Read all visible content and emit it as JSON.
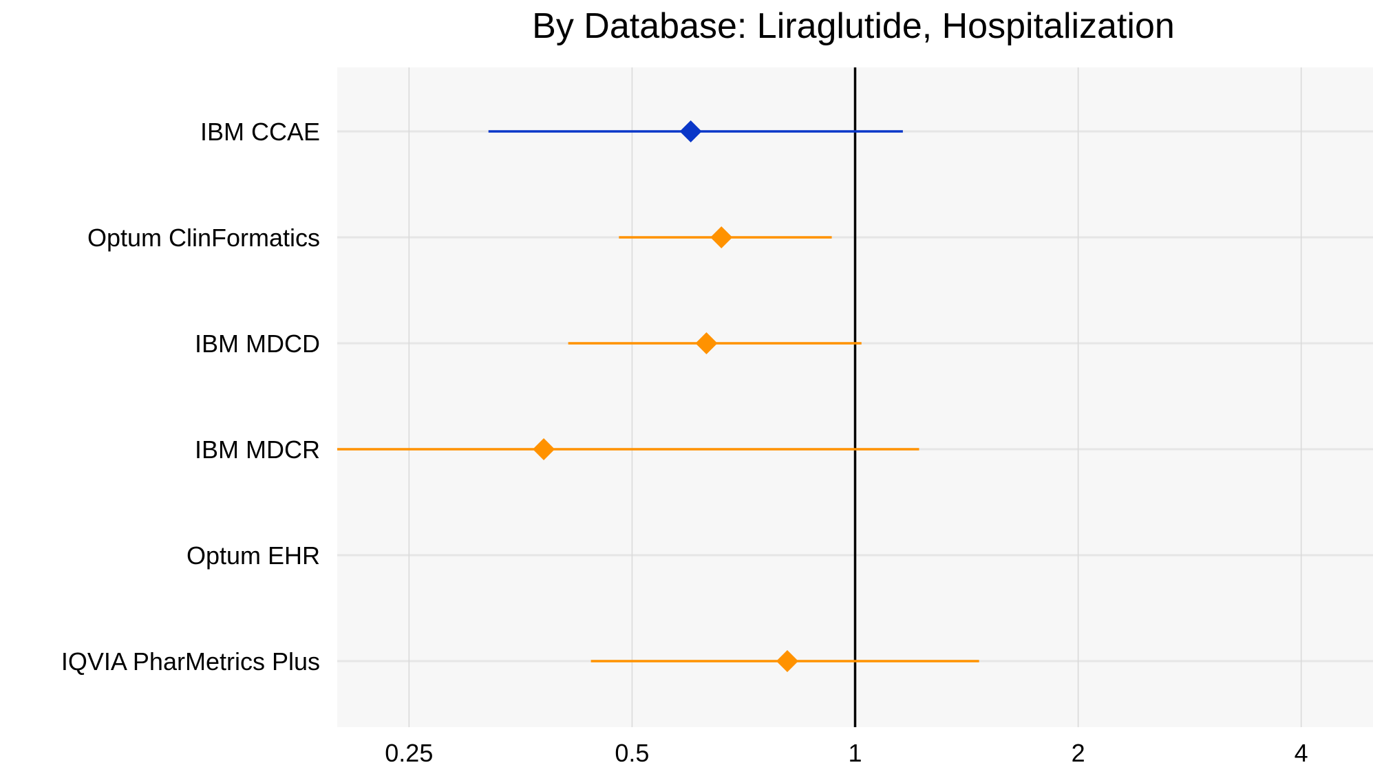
{
  "chart_data": {
    "type": "scatter",
    "title": "By Database: Liraglutide, Hospitalization",
    "xlabel": "",
    "ylabel": "",
    "x_scale": "log2",
    "xlim": [
      0.2,
      5.0
    ],
    "x_ticks": [
      {
        "value": 0.25,
        "label": "0.25"
      },
      {
        "value": 0.5,
        "label": "0.5"
      },
      {
        "value": 1,
        "label": "1"
      },
      {
        "value": 2,
        "label": "2"
      },
      {
        "value": 4,
        "label": "4"
      }
    ],
    "reference_line": 1,
    "grid": true,
    "categories": [
      "IBM CCAE",
      "Optum ClinFormatics",
      "IBM MDCD",
      "IBM MDCR",
      "Optum EHR",
      "IQVIA PharMetrics Plus"
    ],
    "points": [
      {
        "category": "IBM CCAE",
        "estimate": 0.6,
        "lower": 0.32,
        "upper": 1.16,
        "color": "#0a37c8"
      },
      {
        "category": "Optum ClinFormatics",
        "estimate": 0.66,
        "lower": 0.48,
        "upper": 0.93,
        "color": "#ff9200"
      },
      {
        "category": "IBM MDCD",
        "estimate": 0.63,
        "lower": 0.41,
        "upper": 1.02,
        "color": "#ff9200"
      },
      {
        "category": "IBM MDCR",
        "estimate": 0.38,
        "lower": 0.2,
        "upper": 1.22,
        "color": "#ff9200"
      },
      {
        "category": "Optum EHR",
        "estimate": null,
        "lower": null,
        "upper": null,
        "color": "#ff9200"
      },
      {
        "category": "IQVIA PharMetrics Plus",
        "estimate": 0.81,
        "lower": 0.44,
        "upper": 1.47,
        "color": "#ff9200"
      }
    ],
    "colors": {
      "panel_bg": "#f7f7f7",
      "grid": "#d9d9d9",
      "ref_line": "#000000",
      "blue": "#0a37c8",
      "orange": "#ff9200"
    }
  }
}
